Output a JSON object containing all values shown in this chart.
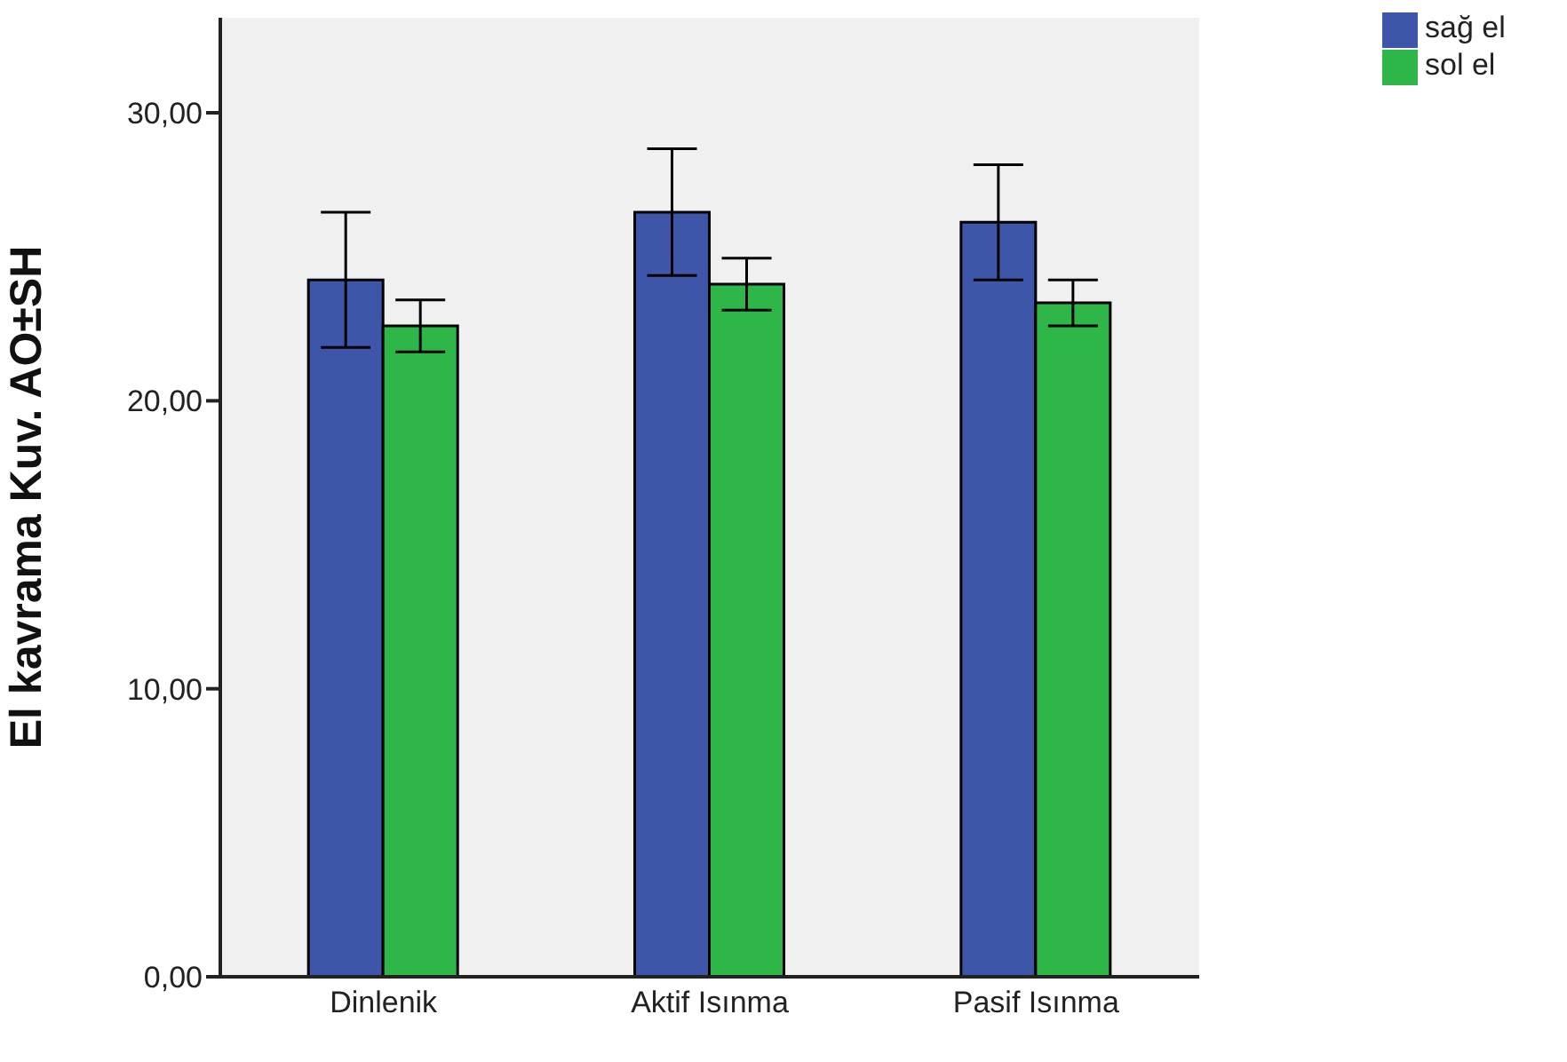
{
  "chart_data": {
    "type": "bar",
    "ylabel": "El kavrama Kuv. AO±SH",
    "categories": [
      "Dinlenik",
      "Aktif Isınma",
      "Pasif Isınma"
    ],
    "series": [
      {
        "name": "sağ el",
        "color": "#3d56aa",
        "values": [
          24.2,
          26.55,
          26.2
        ],
        "errors": [
          2.35,
          2.2,
          2.0
        ]
      },
      {
        "name": "sol el",
        "color": "#2eb748",
        "values": [
          22.6,
          24.05,
          23.4
        ],
        "errors": [
          0.9,
          0.9,
          0.8
        ]
      }
    ],
    "ylim": [
      0,
      33.3
    ],
    "yticks": [
      {
        "value": 0,
        "label": "0,00"
      },
      {
        "value": 10,
        "label": "10,00"
      },
      {
        "value": 20,
        "label": "20,00"
      },
      {
        "value": 30,
        "label": "30,00"
      }
    ],
    "grid": false,
    "legend": "top right"
  }
}
